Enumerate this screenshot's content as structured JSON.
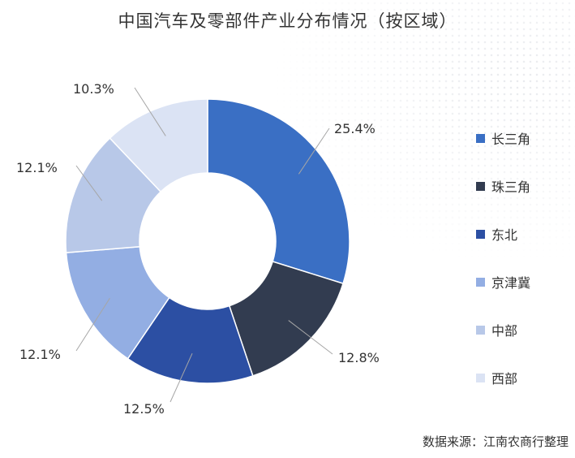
{
  "title": "中国汽车及零部件产业分布情况（按区域）",
  "source": "数据来源：江南农商行整理",
  "chart_data": {
    "type": "pie",
    "title": "中国汽车及零部件产业分布情况（按区域）",
    "unit": "%",
    "legend_position": "right",
    "donut": true,
    "slices": [
      {
        "name": "长三角",
        "value": 25.4,
        "label": "25.4%",
        "color": "#3a6fc4"
      },
      {
        "name": "珠三角",
        "value": 12.8,
        "label": "12.8%",
        "color": "#323c50"
      },
      {
        "name": "东北",
        "value": 12.5,
        "label": "12.5%",
        "color": "#2c4fa3"
      },
      {
        "name": "京津冀",
        "value": 12.1,
        "label": "12.1%",
        "color": "#93aee3"
      },
      {
        "name": "中部",
        "value": 12.1,
        "label": "12.1%",
        "color": "#b8c8e8"
      },
      {
        "name": "西部",
        "value": 10.3,
        "label": "10.3%",
        "color": "#dbe3f4"
      }
    ]
  }
}
